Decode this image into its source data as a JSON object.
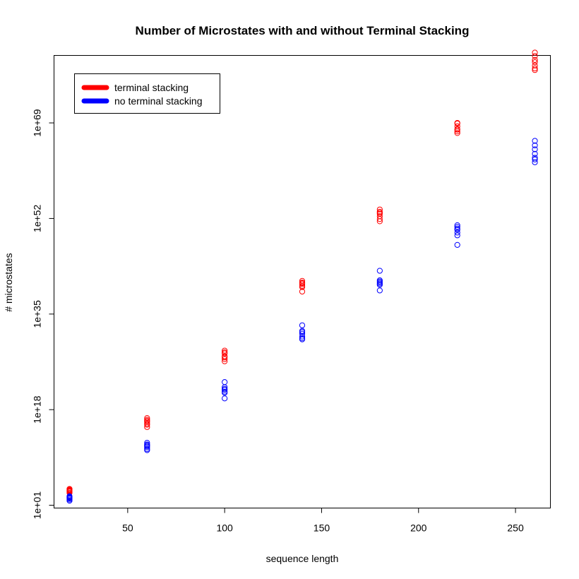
{
  "chart_data": {
    "type": "scatter",
    "title": "Number of Microstates with and without Terminal Stacking",
    "xlabel": "sequence length",
    "ylabel": "# microstates",
    "y_scale": "log10",
    "xlim": [
      12,
      268
    ],
    "ylim_log10": [
      0.5,
      81.0
    ],
    "x_ticks": [
      50,
      100,
      150,
      200,
      250
    ],
    "x_tick_labels": [
      "50",
      "100",
      "150",
      "200",
      "250"
    ],
    "y_ticks_log10": [
      1,
      18,
      35,
      52,
      69
    ],
    "y_tick_labels": [
      "1e+01",
      "1e+18",
      "1e+35",
      "1e+52",
      "1e+69"
    ],
    "grid": false,
    "legend": {
      "position": "top-left",
      "entries": [
        "terminal stacking",
        "no terminal stacking"
      ]
    },
    "series": [
      {
        "name": "terminal stacking",
        "color": "#ff0000",
        "marker": "open-circle",
        "x": [
          20,
          20,
          20,
          20,
          20,
          20,
          20,
          60,
          60,
          60,
          60,
          60,
          60,
          60,
          100,
          100,
          100,
          100,
          100,
          100,
          100,
          140,
          140,
          140,
          140,
          140,
          140,
          140,
          180,
          180,
          180,
          180,
          180,
          180,
          180,
          220,
          220,
          220,
          220,
          220,
          220,
          220,
          260,
          260,
          260,
          260,
          260,
          260,
          260
        ],
        "y_log10": [
          3.9,
          3.7,
          3.5,
          3.4,
          3.2,
          3.6,
          3.8,
          16.5,
          16.0,
          15.5,
          15.3,
          15.8,
          14.9,
          16.2,
          28.5,
          28.0,
          27.5,
          27.0,
          26.6,
          28.2,
          27.3,
          40.9,
          40.6,
          40.3,
          40.0,
          39.8,
          40.5,
          39.0,
          53.6,
          53.2,
          52.8,
          52.4,
          51.9,
          51.5,
          53.0,
          69.0,
          68.4,
          67.9,
          67.5,
          67.2,
          67.8,
          68.9,
          81.5,
          80.9,
          80.2,
          79.8,
          79.2,
          78.7,
          78.4
        ]
      },
      {
        "name": "no terminal stacking",
        "color": "#0000ff",
        "marker": "open-circle",
        "x": [
          20,
          20,
          20,
          20,
          20,
          20,
          20,
          60,
          60,
          60,
          60,
          60,
          60,
          60,
          100,
          100,
          100,
          100,
          100,
          100,
          100,
          140,
          140,
          140,
          140,
          140,
          140,
          140,
          180,
          180,
          180,
          180,
          180,
          180,
          180,
          220,
          220,
          220,
          220,
          220,
          220,
          220,
          260,
          260,
          260,
          260,
          260,
          260,
          260
        ],
        "y_log10": [
          2.6,
          2.4,
          2.2,
          2.0,
          1.8,
          2.5,
          2.3,
          12.1,
          11.8,
          11.5,
          11.3,
          11.0,
          11.7,
          10.8,
          22.9,
          22.0,
          21.5,
          21.2,
          21.0,
          21.7,
          20.0,
          33.0,
          32.0,
          31.5,
          31.0,
          30.7,
          31.8,
          30.5,
          42.7,
          41.0,
          40.6,
          40.2,
          39.2,
          40.8,
          40.4,
          50.8,
          50.5,
          50.0,
          49.5,
          49.0,
          50.2,
          47.3,
          65.8,
          65.0,
          64.3,
          63.5,
          62.5,
          62.0,
          62.8
        ]
      }
    ]
  }
}
